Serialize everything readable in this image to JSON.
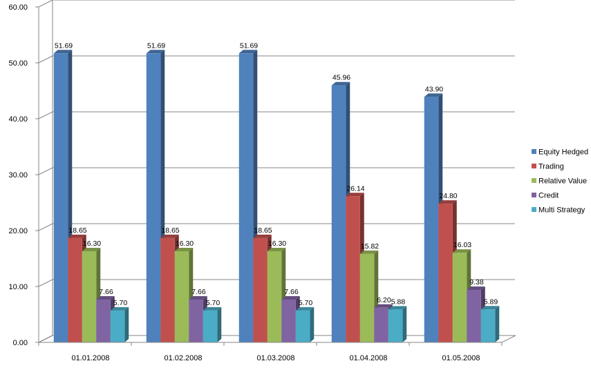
{
  "chart_data": {
    "type": "bar",
    "three_d": true,
    "categories": [
      "01.01.2008",
      "01.02.2008",
      "01.03.2008",
      "01.04.2008",
      "01.05.2008"
    ],
    "series": [
      {
        "name": "Equity Hedged",
        "values": [
          51.69,
          51.69,
          51.69,
          45.96,
          43.9
        ],
        "labels": [
          "51.69",
          "51.69",
          "51.69",
          "45.96",
          "43.90"
        ],
        "color": "#4f81bd"
      },
      {
        "name": "Trading",
        "values": [
          18.65,
          18.65,
          18.65,
          26.14,
          24.8
        ],
        "labels": [
          "18.65",
          "18.65",
          "18.65",
          "26.14",
          "24.80"
        ],
        "color": "#c0504d"
      },
      {
        "name": "Relative Value",
        "values": [
          16.3,
          16.3,
          16.3,
          15.82,
          16.03
        ],
        "labels": [
          "16.30",
          "16.30",
          "16.30",
          "15.82",
          "16.03"
        ],
        "color": "#9bbb59"
      },
      {
        "name": "Credit",
        "values": [
          7.66,
          7.66,
          7.66,
          6.2,
          9.38
        ],
        "labels": [
          "7.66",
          "7.66",
          "7.66",
          "6.20",
          "9.38"
        ],
        "color": "#8064a2"
      },
      {
        "name": "Multi Strategy",
        "values": [
          5.7,
          5.7,
          5.7,
          5.88,
          5.89
        ],
        "labels": [
          "5.70",
          "5.70",
          "5.70",
          "5.88",
          "5.89"
        ],
        "color": "#4bacc6"
      }
    ],
    "yticks": [
      "0.00",
      "10.00",
      "20.00",
      "30.00",
      "40.00",
      "50.00",
      "60.00"
    ],
    "ylim": [
      0,
      60
    ],
    "grid": true,
    "legend_position": "right"
  }
}
